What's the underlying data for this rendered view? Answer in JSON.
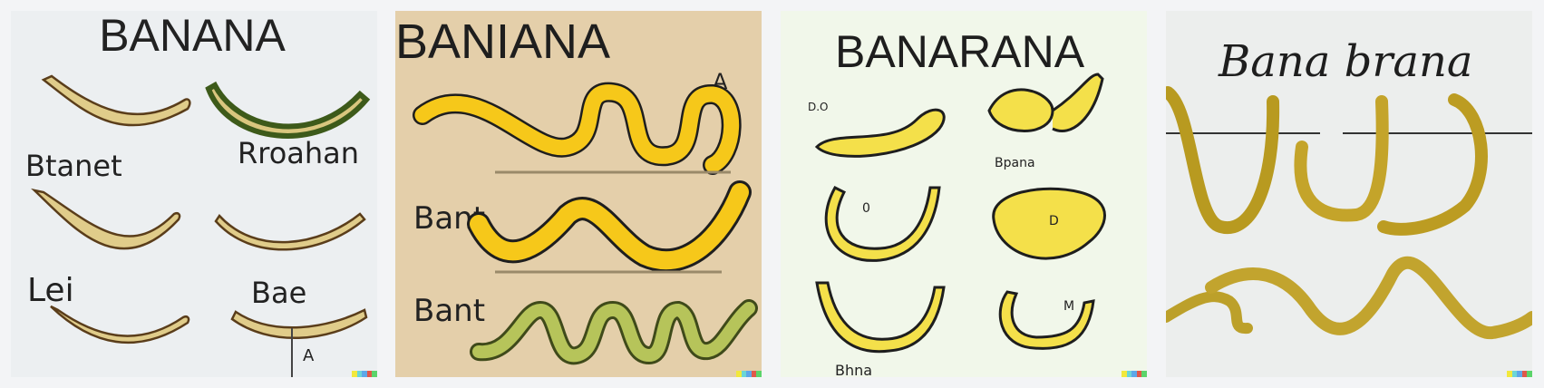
{
  "images": [
    {
      "title": "BANANA",
      "labels": [
        "Btanet",
        "Rroahan",
        "Lei",
        "Bae",
        "A"
      ]
    },
    {
      "title": "BANIANA",
      "labels": [
        "A",
        "Bant",
        "Bant"
      ]
    },
    {
      "title": "BANARANA",
      "labels": [
        "D.O",
        "Bpana",
        "0",
        "D",
        "M",
        "Bhna"
      ]
    },
    {
      "title": "Bana brana",
      "labels": []
    }
  ],
  "signature_colors": [
    "#f2e83c",
    "#6cd6d6",
    "#5ea7e8",
    "#e0584a",
    "#5bd46a"
  ]
}
